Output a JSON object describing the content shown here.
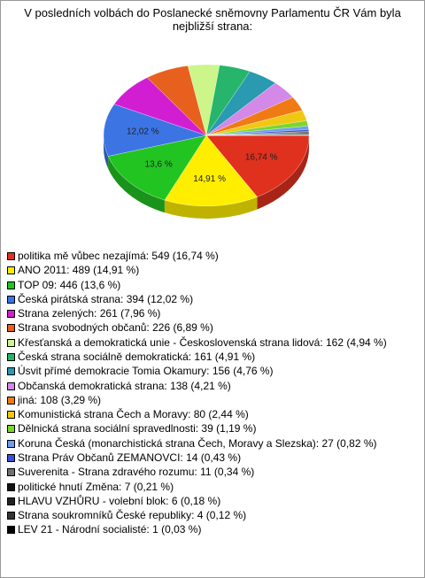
{
  "chart_data": {
    "type": "pie",
    "title": "V posledních volbách do Poslanecké sněmovny Parlamentu ČR Vám byla nejbližší strana:",
    "categories": [
      "politika mě vůbec nezajímá: 549 (16,74 %)",
      "ANO 2011: 489 (14,91 %)",
      "TOP 09: 446 (13,6 %)",
      "Česká pirátská strana: 394 (12,02 %)",
      "Strana zelených: 261 (7,96 %)",
      "Strana svobodných občanů: 226 (6,89 %)",
      "Křesťanská a demokratická unie - Československá strana lidová: 162 (4,94 %)",
      "Česká strana sociálně demokratická: 161 (4,91 %)",
      "Úsvit přímé demokracie Tomia Okamury: 156 (4,76 %)",
      "Občanská demokratická strana: 138 (4,21 %)",
      "jiná: 108 (3,29 %)",
      "Komunistická strana Čech a Moravy: 80 (2,44 %)",
      "Dělnická strana sociální spravedlnosti: 39 (1,19 %)",
      "Koruna Česká (monarchistická strana Čech, Moravy a Slezska): 27 (0,82 %)",
      "Strana Práv Občanů ZEMANOVCI: 14 (0,43 %)",
      "Suverenita - Strana zdravého rozumu: 11 (0,34 %)",
      "politické hnutí Změna: 7 (0,21 %)",
      "HLAVU VZHŮRU - volební blok: 6 (0,18 %)",
      "Strana soukromníků České republiky: 4 (0,12 %)",
      "LEV 21 - Národní socialisté: 1 (0,03 %)"
    ],
    "values": [
      16.74,
      14.91,
      13.6,
      12.02,
      7.96,
      6.89,
      4.94,
      4.91,
      4.76,
      4.21,
      3.29,
      2.44,
      1.19,
      0.82,
      0.43,
      0.34,
      0.21,
      0.18,
      0.12,
      0.03
    ],
    "value_labels": [
      "16,74 %",
      "14,91 %",
      "13,6 %",
      "12,02 %",
      null,
      null,
      null,
      null,
      null,
      null,
      null,
      null,
      null,
      null,
      null,
      null,
      null,
      null,
      null,
      null
    ],
    "colors": [
      "#e0301e",
      "#ffee00",
      "#22c422",
      "#3c74e4",
      "#d21ed2",
      "#e8601e",
      "#ccf58a",
      "#26b56a",
      "#2a9ab0",
      "#d488e8",
      "#f07a14",
      "#f0c814",
      "#7bd62c",
      "#6b9ff0",
      "#3b4fd4",
      "#707070",
      "#111111",
      "#222222",
      "#333333",
      "#000000"
    ]
  }
}
